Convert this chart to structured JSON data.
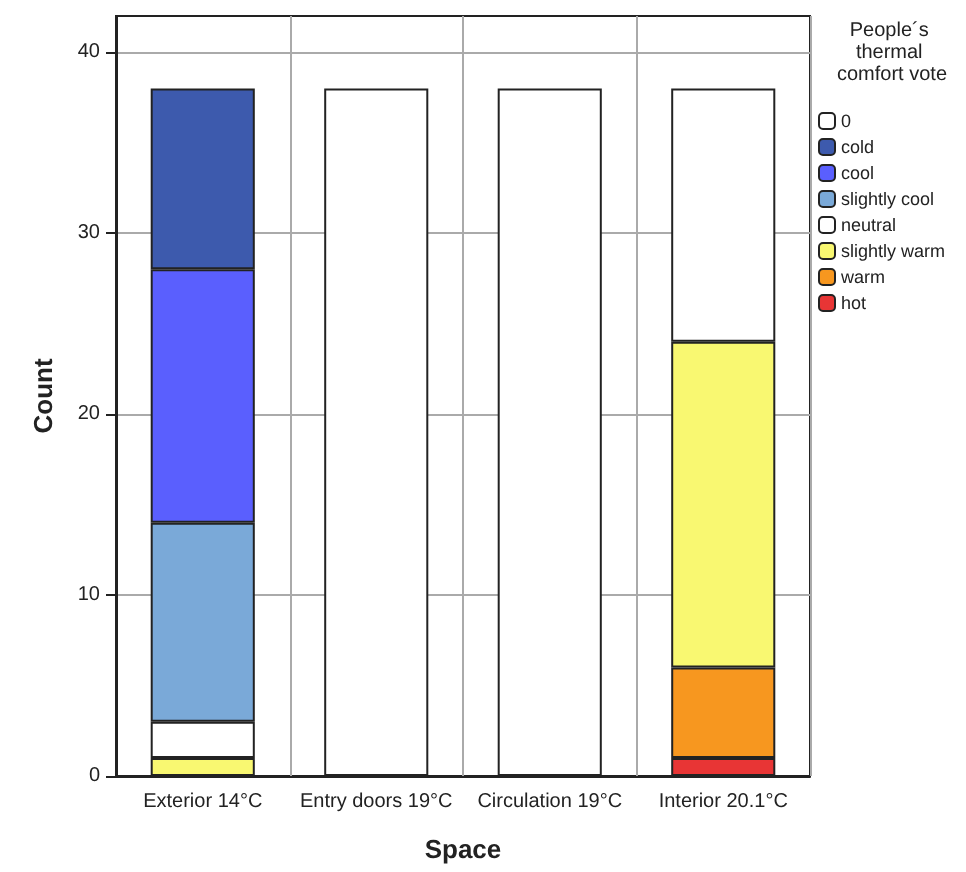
{
  "chart_data": {
    "type": "bar",
    "xlabel": "Space",
    "ylabel": "Count",
    "legend_title": "People´s thermal comfort vote",
    "categories": [
      "Exterior 14°C",
      "Entry doors 19°C",
      "Circulation 19°C",
      "Interior 20.1°C"
    ],
    "series": [
      {
        "name": "hot",
        "color": "#e83535",
        "values": [
          0,
          0,
          0,
          1
        ]
      },
      {
        "name": "warm",
        "color": "#f7971f",
        "values": [
          0,
          0,
          0,
          5
        ]
      },
      {
        "name": "slightly warm",
        "color": "#f9f871",
        "values": [
          1,
          0,
          0,
          18
        ]
      },
      {
        "name": "neutral",
        "color": "#ffffff",
        "values": [
          2,
          38,
          38,
          14
        ]
      },
      {
        "name": "slightly cool",
        "color": "#7aa9d8",
        "values": [
          11,
          0,
          0,
          0
        ]
      },
      {
        "name": "cool",
        "color": "#5a5ffe",
        "values": [
          14,
          0,
          0,
          0
        ]
      },
      {
        "name": "cold",
        "color": "#3d5aad",
        "values": [
          10,
          0,
          0,
          0
        ]
      },
      {
        "name": "0",
        "color": "#ffffff",
        "values": [
          0,
          0,
          0,
          0
        ]
      }
    ],
    "stacked": true,
    "ylim": [
      0,
      42
    ],
    "yticks": [
      0,
      10,
      20,
      30,
      40
    ],
    "grid": true,
    "legend": "right"
  }
}
